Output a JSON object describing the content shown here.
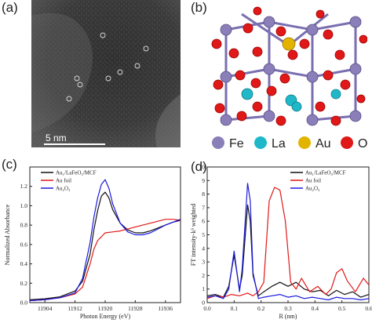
{
  "panel_labels": {
    "a": "(a)",
    "b": "(b)",
    "c": "(c)",
    "d": "(d)"
  },
  "stem": {
    "scale_bar_label": "5 nm"
  },
  "structure": {
    "legend": [
      {
        "label": "Fe",
        "color": "#8a7fb8"
      },
      {
        "label": "La",
        "color": "#1fb8c8"
      },
      {
        "label": "Au",
        "color": "#e2b400"
      },
      {
        "label": "O",
        "color": "#e01818"
      }
    ]
  },
  "chart_data": [
    {
      "type": "line",
      "panel": "c",
      "xlabel": "Photon Energy (eV)",
      "ylabel": "Normalized Absorbance",
      "xlim": [
        11900,
        11940
      ],
      "ylim": [
        0.0,
        1.4
      ],
      "xticks": [
        "11904",
        "11912",
        "11920",
        "11928",
        "11936"
      ],
      "yticks": [
        "0.0",
        "0.2",
        "0.4",
        "0.6",
        "0.8",
        "1.0",
        "1.2"
      ],
      "legend_placement": "top-left",
      "series": [
        {
          "name": "Au₁/LaFeO₃/MCF",
          "color": "#111111",
          "x": [
            11900,
            11904,
            11908,
            11912,
            11914,
            11916,
            11917,
            11918,
            11919,
            11920,
            11921,
            11922,
            11924,
            11926,
            11928,
            11930,
            11932,
            11934,
            11936,
            11938,
            11940
          ],
          "y": [
            0.03,
            0.04,
            0.06,
            0.12,
            0.22,
            0.5,
            0.75,
            0.95,
            1.1,
            1.14,
            1.08,
            0.96,
            0.82,
            0.75,
            0.72,
            0.72,
            0.74,
            0.77,
            0.8,
            0.83,
            0.85
          ]
        },
        {
          "name": "Au foil",
          "color": "#e01818",
          "x": [
            11900,
            11904,
            11908,
            11912,
            11914,
            11916,
            11917,
            11918,
            11920,
            11922,
            11924,
            11926,
            11928,
            11930,
            11932,
            11934,
            11936,
            11938,
            11940
          ],
          "y": [
            0.02,
            0.03,
            0.05,
            0.09,
            0.16,
            0.4,
            0.55,
            0.64,
            0.72,
            0.73,
            0.74,
            0.76,
            0.78,
            0.8,
            0.82,
            0.84,
            0.86,
            0.86,
            0.85
          ]
        },
        {
          "name": "Au₂O₃",
          "color": "#1a1ae0",
          "x": [
            11900,
            11904,
            11908,
            11912,
            11914,
            11916,
            11917,
            11918,
            11919,
            11920,
            11921,
            11922,
            11924,
            11926,
            11928,
            11930,
            11932,
            11934,
            11936,
            11938,
            11940
          ],
          "y": [
            0.02,
            0.03,
            0.05,
            0.1,
            0.25,
            0.62,
            0.88,
            1.08,
            1.22,
            1.27,
            1.18,
            1.02,
            0.82,
            0.73,
            0.7,
            0.7,
            0.72,
            0.76,
            0.8,
            0.83,
            0.86
          ]
        }
      ]
    },
    {
      "type": "line",
      "panel": "d",
      "xlabel": "R (nm)",
      "ylabel": "FT intensity-k³ weighted",
      "xlim": [
        0.0,
        0.6
      ],
      "ylim": [
        0,
        10
      ],
      "xticks": [
        "0.0",
        "0.1",
        "0.2",
        "0.3",
        "0.4",
        "0.5",
        "0.6"
      ],
      "yticks": [
        "0",
        "1",
        "2",
        "3",
        "4",
        "5",
        "6",
        "7",
        "8",
        "9",
        "10"
      ],
      "legend_placement": "top-right",
      "series": [
        {
          "name": "Au₁/LaFeO₃/MCF",
          "color": "#111111",
          "x": [
            0.0,
            0.03,
            0.06,
            0.08,
            0.1,
            0.12,
            0.13,
            0.15,
            0.16,
            0.17,
            0.19,
            0.21,
            0.24,
            0.27,
            0.3,
            0.33,
            0.36,
            0.39,
            0.42,
            0.45,
            0.48,
            0.51,
            0.54,
            0.57,
            0.6
          ],
          "y": [
            0.5,
            0.6,
            0.4,
            1.2,
            3.5,
            1.0,
            2.0,
            7.2,
            6.0,
            2.0,
            0.5,
            0.8,
            1.2,
            1.5,
            1.2,
            1.5,
            1.0,
            0.8,
            0.9,
            0.5,
            0.9,
            0.6,
            0.8,
            0.4,
            0.6
          ]
        },
        {
          "name": "Au foil",
          "color": "#e01818",
          "x": [
            0.0,
            0.03,
            0.06,
            0.09,
            0.12,
            0.15,
            0.17,
            0.19,
            0.21,
            0.23,
            0.25,
            0.27,
            0.29,
            0.31,
            0.33,
            0.35,
            0.38,
            0.41,
            0.44,
            0.46,
            0.48,
            0.5,
            0.52,
            0.55,
            0.58,
            0.6
          ],
          "y": [
            0.3,
            0.5,
            0.4,
            0.6,
            0.5,
            0.7,
            0.5,
            0.8,
            1.5,
            7.5,
            8.5,
            8.3,
            6.0,
            1.5,
            1.0,
            1.8,
            0.8,
            1.2,
            0.6,
            1.0,
            2.2,
            2.5,
            1.6,
            0.8,
            1.8,
            1.3
          ]
        },
        {
          "name": "Au₂O₃",
          "color": "#1a1ae0",
          "x": [
            0.0,
            0.03,
            0.06,
            0.08,
            0.1,
            0.12,
            0.13,
            0.15,
            0.16,
            0.17,
            0.19,
            0.21,
            0.24,
            0.27,
            0.3,
            0.33,
            0.36,
            0.39,
            0.42,
            0.45,
            0.48,
            0.51,
            0.54,
            0.57,
            0.6
          ],
          "y": [
            0.4,
            0.5,
            0.3,
            1.0,
            3.8,
            0.8,
            2.5,
            8.8,
            7.5,
            2.2,
            0.3,
            0.4,
            0.5,
            0.6,
            0.4,
            0.5,
            0.3,
            0.4,
            0.3,
            0.2,
            0.4,
            0.3,
            0.3,
            0.2,
            0.3
          ]
        }
      ]
    }
  ]
}
